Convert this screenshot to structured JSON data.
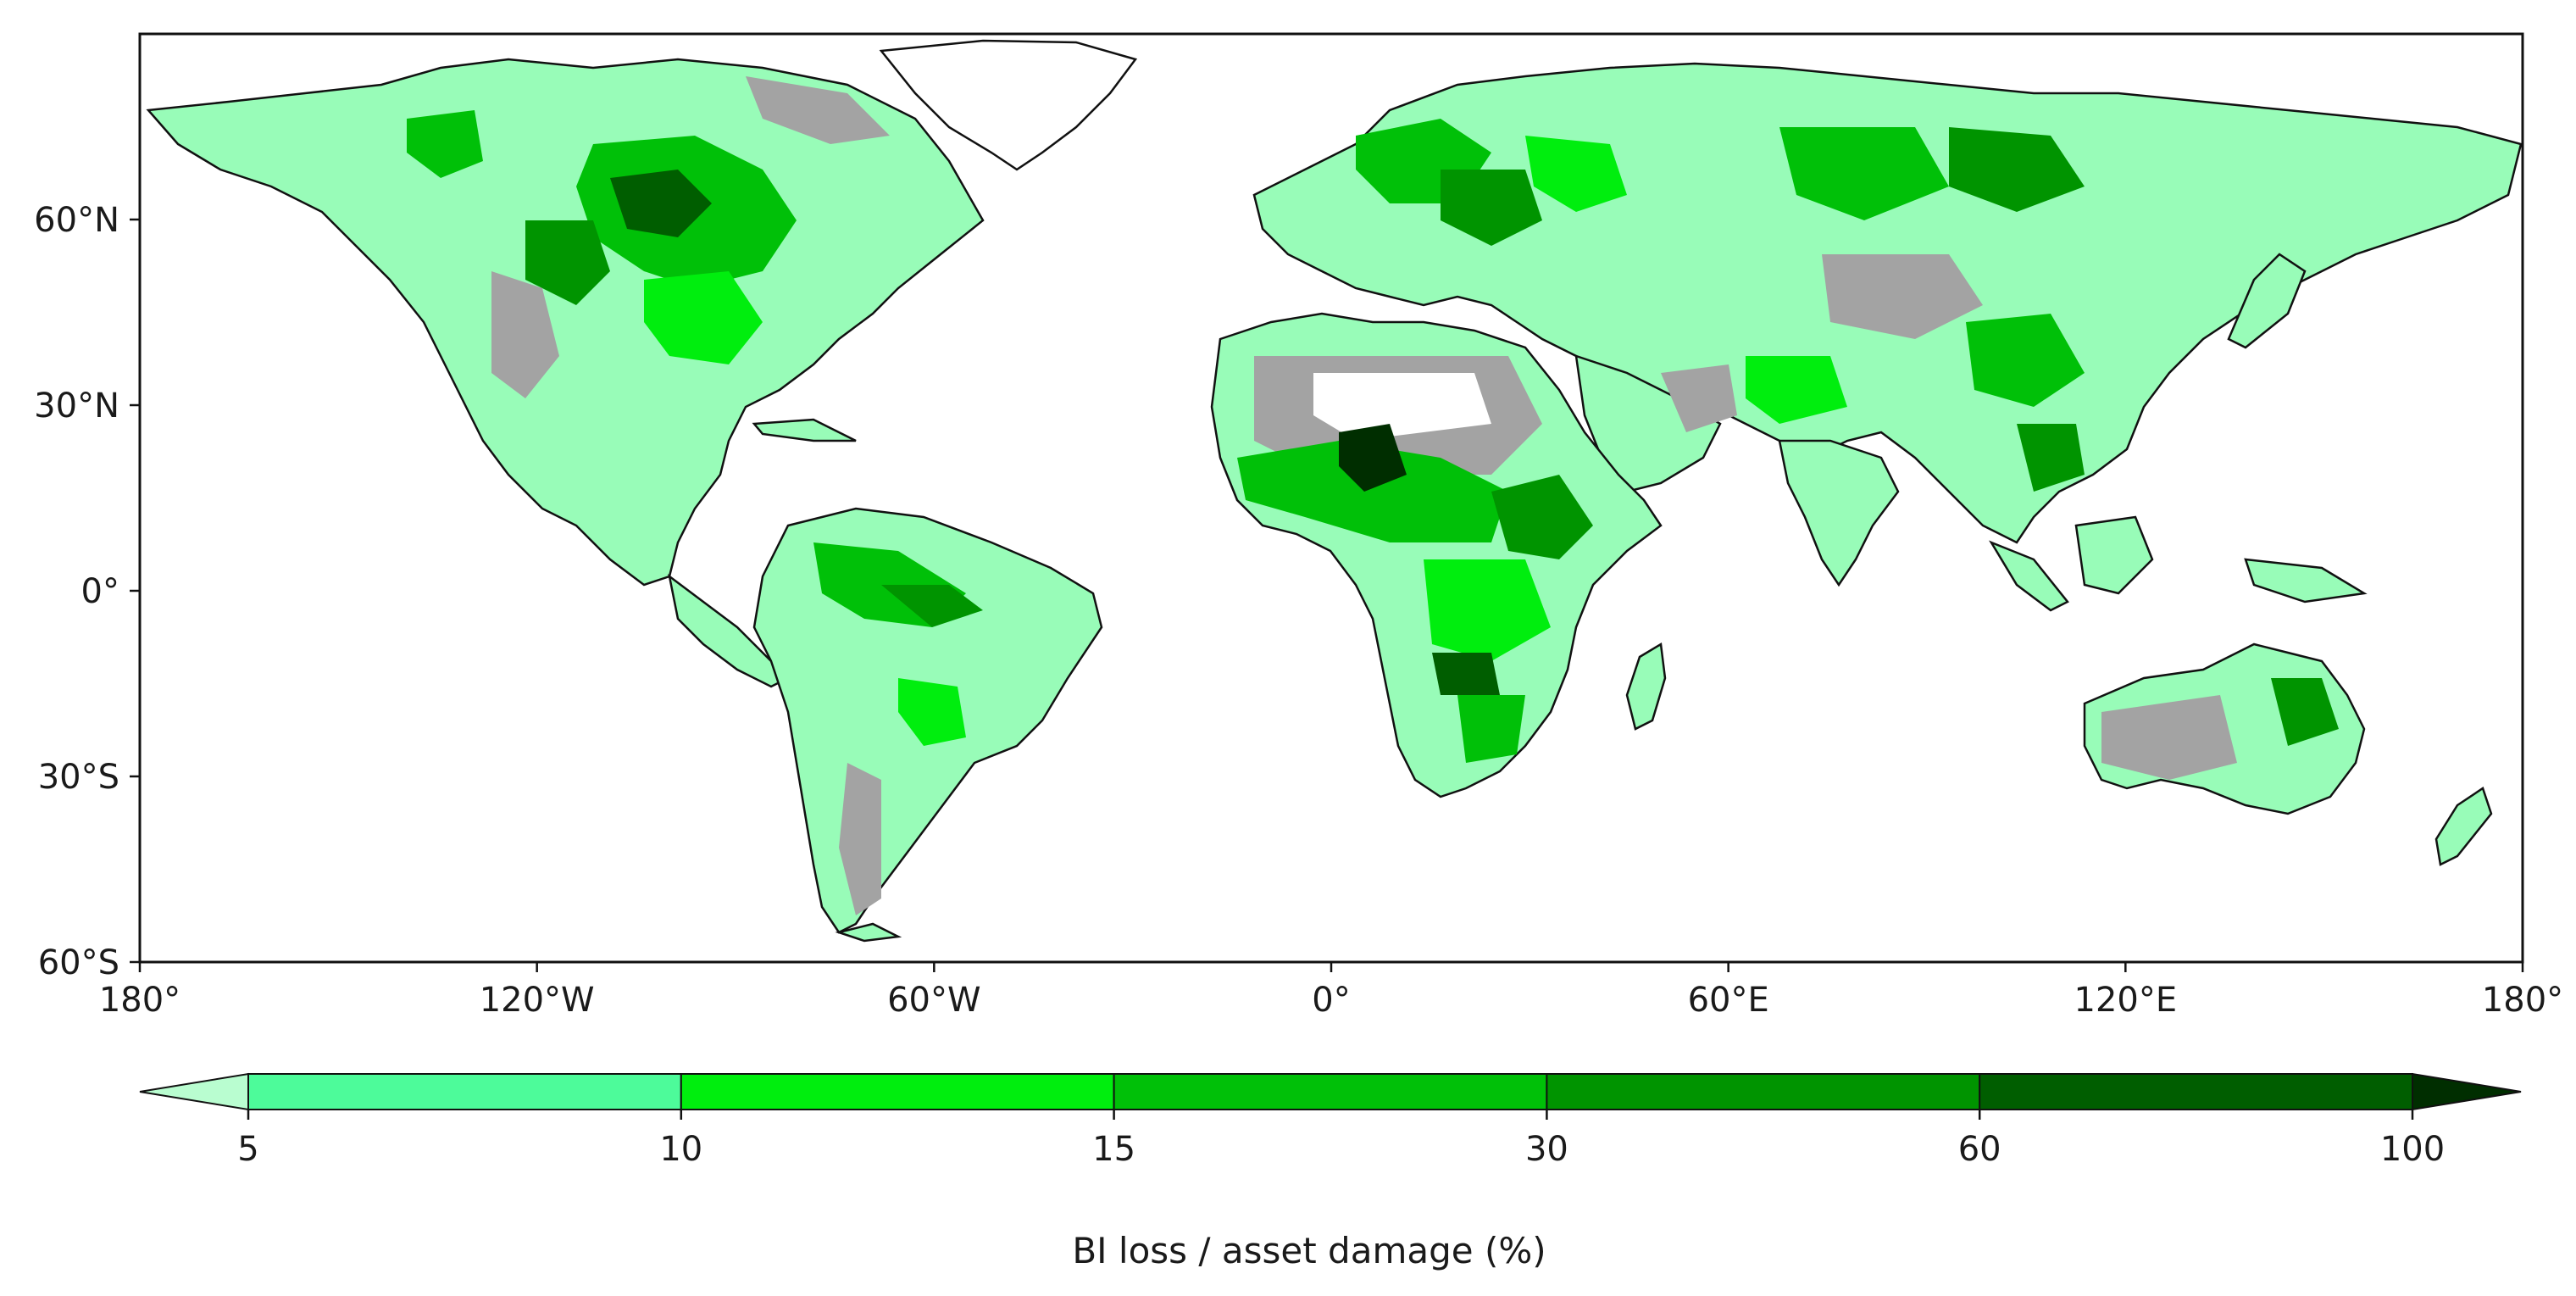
{
  "map": {
    "projection": "PlateCarree",
    "lon_range": [
      -180,
      180
    ],
    "lat_range": [
      -60,
      90
    ],
    "lon_ticks": [
      {
        "value": -180,
        "label": "180°"
      },
      {
        "value": -120,
        "label": "120°W"
      },
      {
        "value": -60,
        "label": "60°W"
      },
      {
        "value": 0,
        "label": "0°"
      },
      {
        "value": 60,
        "label": "60°E"
      },
      {
        "value": 120,
        "label": "120°E"
      },
      {
        "value": 180,
        "label": "180°"
      }
    ],
    "lat_ticks": [
      {
        "value": 60,
        "label": "60°N"
      },
      {
        "value": 30,
        "label": "30°N"
      },
      {
        "value": 0,
        "label": "0°"
      },
      {
        "value": -30,
        "label": "30°S"
      },
      {
        "value": -60,
        "label": "60°S"
      }
    ],
    "no_data_color": "#a3a3a3",
    "ocean_color": "#ffffff"
  },
  "colorbar": {
    "label": "BI loss / asset damage (%)",
    "extend": "both",
    "bounds": [
      "5",
      "10",
      "15",
      "30",
      "60",
      "100"
    ],
    "colors": {
      "under": "#b9fdd0",
      "bins": [
        "#4dfb9a",
        "#00ee0e",
        "#00c008",
        "#009400",
        "#005e00"
      ],
      "over": "#002e00"
    }
  }
}
